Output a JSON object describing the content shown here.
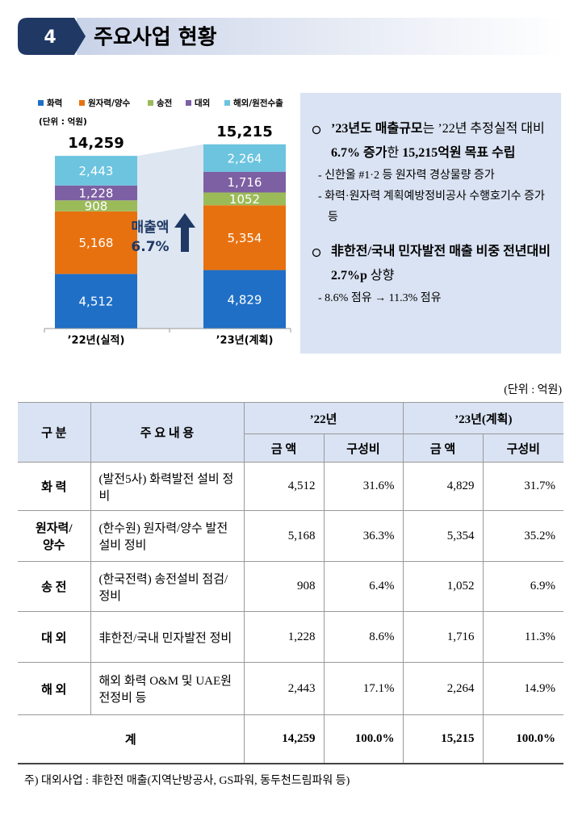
{
  "header": {
    "number": "4",
    "title": "주요사업 현황"
  },
  "chart_data": {
    "type": "stacked_bar",
    "unit": "(단위 : 억원)",
    "categories": [
      "’22년(실적)",
      "’23년(계획)"
    ],
    "series": [
      {
        "name": "화력",
        "color": "#1f6fc6",
        "values": [
          4512,
          4829
        ],
        "value_labels": [
          "4,512",
          "4,829"
        ]
      },
      {
        "name": "원자력/양수",
        "color": "#e8710f",
        "values": [
          5168,
          5354
        ],
        "value_labels": [
          "5,168",
          "5,354"
        ]
      },
      {
        "name": "송전",
        "color": "#9bbb59",
        "values": [
          908,
          1052
        ]
      },
      {
        "name": "대외",
        "color": "#7d5fa3",
        "values": [
          1228,
          1716
        ],
        "value_labels": [
          "1,228",
          "1,716"
        ]
      },
      {
        "name": "해외/원전수출",
        "color": "#6cc4df",
        "values": [
          2443,
          2264
        ],
        "value_labels": [
          "2,443",
          "2,264"
        ]
      }
    ],
    "totals": [
      14259,
      15215
    ],
    "total_labels": [
      "14,259",
      "15,215"
    ],
    "annotation": [
      "매출액",
      "6.7%"
    ],
    "ylim": [
      0,
      16000
    ]
  },
  "summary": {
    "bullets": [
      {
        "segments": [
          {
            "text": "’23년도 매출규모",
            "bold": true
          },
          {
            "text": "는 ’22년 추정실적 대비 ",
            "bold": false
          },
          {
            "text": "6.7% 증가",
            "bold": true
          },
          {
            "text": "한 ",
            "bold": false
          },
          {
            "text": "15,215억원 목표 수립",
            "bold": true
          }
        ],
        "subs": [
          "- 신한울 #1·2 등 원자력 경상물량 증가",
          "- 화력·원자력 계획예방정비공사 수행호기수 증가 등"
        ]
      },
      {
        "segments": [
          {
            "text": "非한전/국내 민자발전 매출 비중 전년대비 2.7%p",
            "bold": true
          },
          {
            "text": " 상향",
            "bold": false
          }
        ],
        "subs": [
          "- 8.6% 점유 → 11.3% 점유"
        ]
      }
    ]
  },
  "table": {
    "unit": "(단위 : 억원)",
    "header": {
      "group": "구 분",
      "content": "주 요 내 용",
      "years": [
        "’22년",
        "’23년(계획)"
      ],
      "columns": [
        "금 액",
        "구성비",
        "금 액",
        "구성비"
      ]
    },
    "rows": [
      [
        "화 력",
        "(발전5사) 화력발전 설비 정비",
        "4,512",
        "31.6%",
        "4,829",
        "31.7%"
      ],
      [
        "원자력/ 양수",
        "(한수원) 원자력/양수 발전설비 정비",
        "5,168",
        "36.3%",
        "5,354",
        "35.2%"
      ],
      [
        "송 전",
        "(한국전력) 송전설비 점검/정비",
        "908",
        "6.4%",
        "1,052",
        "6.9%"
      ],
      [
        "대 외",
        "非한전/국내 민자발전 정비",
        "1,228",
        "8.6%",
        "1,716",
        "11.3%"
      ],
      [
        "해 외",
        "해외 화력 O&M 및 UAE원전정비 등",
        "2,443",
        "17.1%",
        "2,264",
        "14.9%"
      ]
    ],
    "total": [
      "계",
      "14,259",
      "100.0%",
      "15,215",
      "100.0%"
    ]
  },
  "footnote": "주) 대외사업 : 非한전 매출(지역난방공사, GS파워, 동두천드림파워 등)"
}
